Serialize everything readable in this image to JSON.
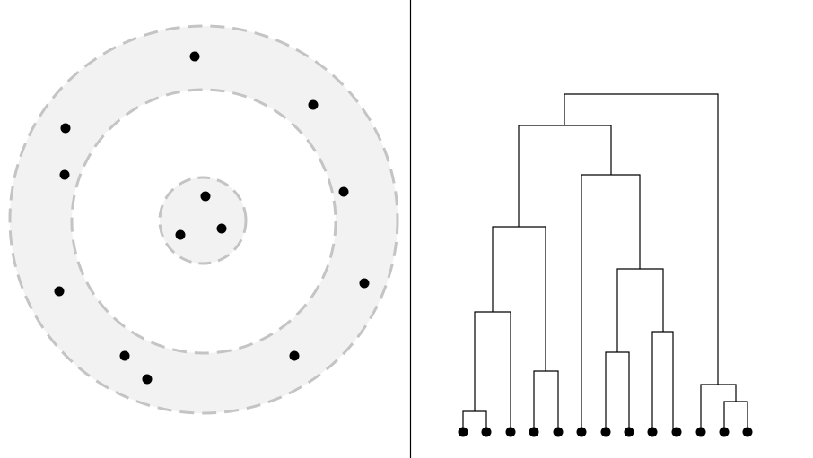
{
  "colors": {
    "background": "#ffffff",
    "ring_fill": "#f2f2f2",
    "dash_stroke": "#c4c4c4",
    "point": "#000000",
    "divider": "#000000",
    "dendrogram_line": "#000000"
  },
  "left_panel": {
    "description_free": true,
    "rings": [
      "outer-ring",
      "inner-ring",
      "core-cluster"
    ],
    "point_count": 13
  },
  "right_panel": {
    "leaf_count": 13
  }
}
